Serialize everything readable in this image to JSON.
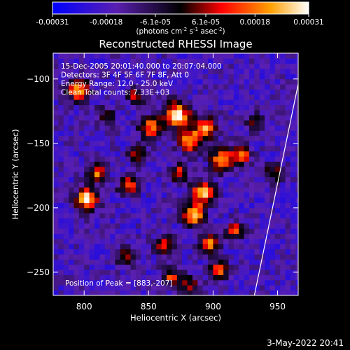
{
  "chart_data": {
    "type": "heatmap",
    "title": "Reconstructed RHESSI Image",
    "colorbar": {
      "ticks": [
        "-0.00031",
        "-0.00018",
        "-6.1e-05",
        "6.1e-05",
        "0.00018",
        "0.00031"
      ],
      "tick_values": [
        -0.00031,
        -0.00018,
        -6.1e-05,
        6.1e-05,
        0.00018,
        0.00031
      ],
      "range": [
        -0.00031,
        0.00031
      ],
      "units_line1": "(photons cm",
      "units_sup1": "-2",
      "units_mid1": " s",
      "units_sup2": "-1",
      "units_mid2": " asec",
      "units_sup3": "-2",
      "units_end": ")",
      "colors": [
        "#0000ff",
        "#5a1fb0",
        "#000000",
        "#ff0000",
        "#ffa000",
        "#ffffff"
      ]
    },
    "xlabel": "Heliocentric X (arcsec)",
    "ylabel": "Heliocentric Y (arcsec)",
    "xlim": [
      776,
      966
    ],
    "ylim": [
      -268,
      -80
    ],
    "xticks": [
      800,
      850,
      900,
      950
    ],
    "yticks": [
      -100,
      -150,
      -200,
      -250
    ],
    "annotations": [
      "15-Dec-2005 20:01:40.000 to 20:07:04.000",
      "Detectors: 3F 4F 5F 6F 7F 8F, Att 0",
      "Energy Range: 12.0 - 25.0 keV",
      "Clean     Total counts: 7.33E+03"
    ],
    "peak_label": "Position of Peak = [883,-207]",
    "limb_line": {
      "x": [
        932,
        966
      ],
      "y": [
        -268,
        -104
      ]
    },
    "blobs": [
      {
        "x": 793,
        "y": -110,
        "amp": 0.9,
        "s": 6
      },
      {
        "x": 808,
        "y": -175,
        "amp": 0.7,
        "s": 5
      },
      {
        "x": 800,
        "y": -195,
        "amp": 1.0,
        "s": 6
      },
      {
        "x": 832,
        "y": -185,
        "amp": 0.7,
        "s": 5
      },
      {
        "x": 850,
        "y": -140,
        "amp": 0.8,
        "s": 6
      },
      {
        "x": 840,
        "y": -160,
        "amp": 0.5,
        "s": 5
      },
      {
        "x": 870,
        "y": -130,
        "amp": 1.0,
        "s": 7
      },
      {
        "x": 880,
        "y": -150,
        "amp": 0.9,
        "s": 6
      },
      {
        "x": 892,
        "y": -140,
        "amp": 0.8,
        "s": 6
      },
      {
        "x": 905,
        "y": -165,
        "amp": 0.9,
        "s": 6
      },
      {
        "x": 920,
        "y": -160,
        "amp": 0.8,
        "s": 5
      },
      {
        "x": 883,
        "y": -207,
        "amp": 1.0,
        "s": 6
      },
      {
        "x": 890,
        "y": -190,
        "amp": 0.9,
        "s": 6
      },
      {
        "x": 895,
        "y": -230,
        "amp": 0.8,
        "s": 5
      },
      {
        "x": 902,
        "y": -250,
        "amp": 0.7,
        "s": 5
      },
      {
        "x": 915,
        "y": -220,
        "amp": 0.6,
        "s": 5
      },
      {
        "x": 860,
        "y": -230,
        "amp": 0.6,
        "s": 5
      },
      {
        "x": 830,
        "y": -240,
        "amp": 0.5,
        "s": 5
      },
      {
        "x": 865,
        "y": -255,
        "amp": 0.6,
        "s": 5
      },
      {
        "x": 880,
        "y": -262,
        "amp": 0.5,
        "s": 5
      },
      {
        "x": 945,
        "y": -175,
        "amp": 0.5,
        "s": 5
      },
      {
        "x": 930,
        "y": -135,
        "amp": 0.4,
        "s": 5
      },
      {
        "x": 838,
        "y": -115,
        "amp": 0.5,
        "s": 5
      },
      {
        "x": 815,
        "y": -130,
        "amp": 0.4,
        "s": 5
      },
      {
        "x": 872,
        "y": -175,
        "amp": 0.6,
        "s": 5
      }
    ]
  },
  "footer_timestamp": "3-May-2022 20:41"
}
